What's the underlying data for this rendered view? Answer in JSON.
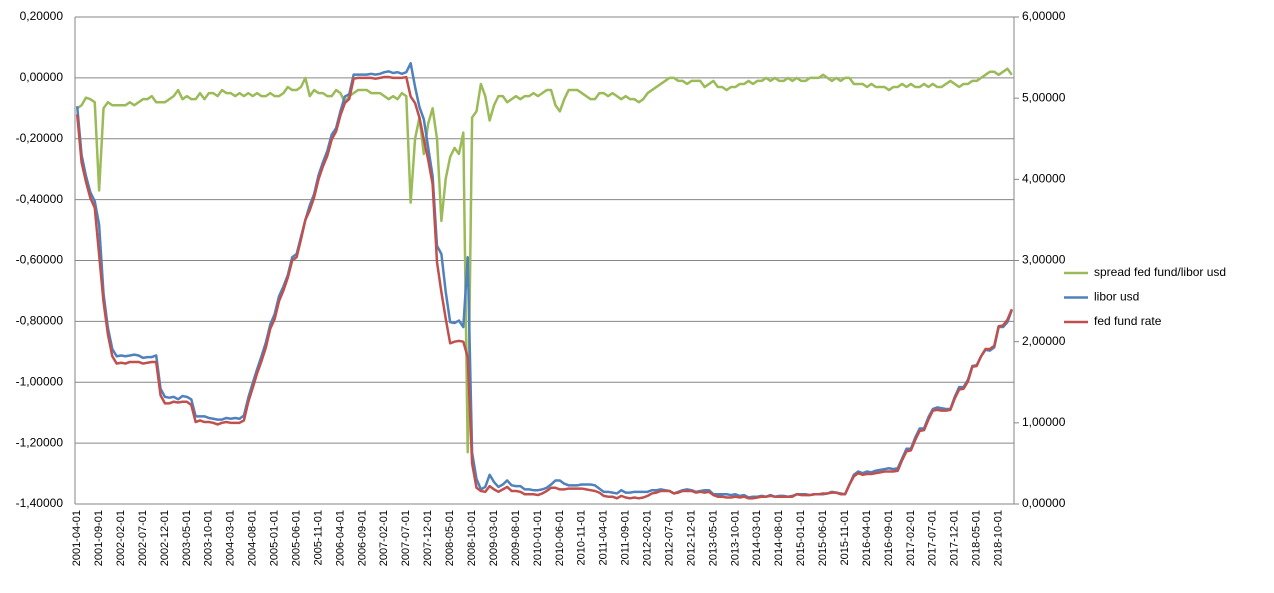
{
  "chart_data": {
    "type": "line",
    "categories": [
      "2001-04-01",
      null,
      null,
      null,
      null,
      "2001-09-01",
      null,
      null,
      null,
      null,
      "2002-02-01",
      null,
      null,
      null,
      null,
      "2002-07-01",
      null,
      null,
      null,
      null,
      "2002-12-01",
      null,
      null,
      null,
      null,
      "2003-05-01",
      null,
      null,
      null,
      null,
      "2003-10-01",
      null,
      null,
      null,
      null,
      "2004-03-01",
      null,
      null,
      null,
      null,
      "2004-08-01",
      null,
      null,
      null,
      null,
      "2005-01-01",
      null,
      null,
      null,
      null,
      "2005-06-01",
      null,
      null,
      null,
      null,
      "2005-11-01",
      null,
      null,
      null,
      null,
      "2006-04-01",
      null,
      null,
      null,
      null,
      "2006-09-01",
      null,
      null,
      null,
      null,
      "2007-02-01",
      null,
      null,
      null,
      null,
      "2007-07-01",
      null,
      null,
      null,
      null,
      "2007-12-01",
      null,
      null,
      null,
      null,
      "2008-05-01",
      null,
      null,
      null,
      null,
      "2008-10-01",
      null,
      null,
      null,
      null,
      "2009-03-01",
      null,
      null,
      null,
      null,
      "2009-08-01",
      null,
      null,
      null,
      null,
      "2010-01-01",
      null,
      null,
      null,
      null,
      "2010-06-01",
      null,
      null,
      null,
      null,
      "2010-11-01",
      null,
      null,
      null,
      null,
      "2011-04-01",
      null,
      null,
      null,
      null,
      "2011-09-01",
      null,
      null,
      null,
      null,
      "2012-02-01",
      null,
      null,
      null,
      null,
      "2012-07-01",
      null,
      null,
      null,
      null,
      "2012-12-01",
      null,
      null,
      null,
      null,
      "2013-05-01",
      null,
      null,
      null,
      null,
      "2013-10-01",
      null,
      null,
      null,
      null,
      "2014-03-01",
      null,
      null,
      null,
      null,
      "2014-08-01",
      null,
      null,
      null,
      null,
      "2015-01-01",
      null,
      null,
      null,
      null,
      "2015-06-01",
      null,
      null,
      null,
      null,
      "2015-11-01",
      null,
      null,
      null,
      null,
      "2016-04-01",
      null,
      null,
      null,
      null,
      "2016-09-01",
      null,
      null,
      null,
      null,
      "2017-02-01",
      null,
      null,
      null,
      null,
      "2017-07-01",
      null,
      null,
      null,
      null,
      "2017-12-01",
      null,
      null,
      null,
      null,
      "2018-05-01",
      null,
      null,
      null,
      null,
      "2018-10-01",
      null,
      null,
      null
    ],
    "series": [
      {
        "name": "spread fed fund/libor usd",
        "color": "#9bbb59",
        "values": [
          -0.1,
          -0.09,
          -0.065,
          -0.07,
          -0.08,
          -0.37,
          -0.1,
          -0.08,
          -0.09,
          -0.09,
          -0.09,
          -0.09,
          -0.08,
          -0.09,
          -0.08,
          -0.07,
          -0.07,
          -0.06,
          -0.08,
          -0.08,
          -0.08,
          -0.07,
          -0.06,
          -0.04,
          -0.07,
          -0.06,
          -0.07,
          -0.07,
          -0.05,
          -0.07,
          -0.05,
          -0.05,
          -0.06,
          -0.04,
          -0.05,
          -0.05,
          -0.06,
          -0.05,
          -0.06,
          -0.05,
          -0.06,
          -0.05,
          -0.06,
          -0.06,
          -0.05,
          -0.06,
          -0.06,
          -0.05,
          -0.03,
          -0.04,
          -0.04,
          -0.03,
          0.0,
          -0.06,
          -0.04,
          -0.05,
          -0.05,
          -0.06,
          -0.06,
          -0.04,
          -0.05,
          -0.08,
          -0.06,
          -0.05,
          -0.04,
          -0.04,
          -0.04,
          -0.05,
          -0.05,
          -0.05,
          -0.06,
          -0.07,
          -0.06,
          -0.07,
          -0.05,
          -0.06,
          -0.41,
          -0.2,
          -0.13,
          -0.25,
          -0.15,
          -0.1,
          -0.2,
          -0.47,
          -0.33,
          -0.26,
          -0.23,
          -0.25,
          -0.18,
          -1.23,
          -0.13,
          -0.11,
          -0.02,
          -0.06,
          -0.14,
          -0.09,
          -0.06,
          -0.06,
          -0.08,
          -0.07,
          -0.06,
          -0.07,
          -0.06,
          -0.06,
          -0.05,
          -0.06,
          -0.05,
          -0.04,
          -0.04,
          -0.09,
          -0.11,
          -0.07,
          -0.04,
          -0.04,
          -0.04,
          -0.05,
          -0.06,
          -0.07,
          -0.07,
          -0.05,
          -0.05,
          -0.06,
          -0.05,
          -0.06,
          -0.07,
          -0.06,
          -0.07,
          -0.07,
          -0.08,
          -0.07,
          -0.05,
          -0.04,
          -0.03,
          -0.02,
          -0.01,
          0.0,
          0.0,
          -0.01,
          -0.01,
          -0.02,
          -0.01,
          -0.01,
          -0.01,
          -0.03,
          -0.02,
          -0.01,
          -0.03,
          -0.03,
          -0.04,
          -0.03,
          -0.03,
          -0.02,
          -0.02,
          -0.01,
          -0.02,
          -0.01,
          -0.01,
          0.0,
          -0.01,
          0.0,
          -0.01,
          -0.01,
          0.0,
          -0.01,
          0.0,
          -0.01,
          -0.01,
          0.0,
          0.0,
          0.0,
          0.01,
          0.0,
          -0.01,
          0.0,
          -0.01,
          0.0,
          0.0,
          -0.02,
          -0.02,
          -0.02,
          -0.03,
          -0.02,
          -0.03,
          -0.03,
          -0.03,
          -0.04,
          -0.03,
          -0.03,
          -0.02,
          -0.03,
          -0.02,
          -0.03,
          -0.03,
          -0.02,
          -0.03,
          -0.02,
          -0.03,
          -0.03,
          -0.02,
          -0.01,
          -0.02,
          -0.03,
          -0.02,
          -0.02,
          -0.01,
          -0.01,
          0.0,
          0.01,
          0.02,
          0.02,
          0.01,
          0.02,
          0.03,
          0.01
        ]
      },
      {
        "name": "libor usd",
        "color": "#4f81bd",
        "axis": "y2",
        "values": [
          4.9,
          4.3,
          4.04,
          3.84,
          3.73,
          3.44,
          2.59,
          2.17,
          1.91,
          1.82,
          1.83,
          1.82,
          1.83,
          1.84,
          1.83,
          1.8,
          1.81,
          1.81,
          1.83,
          1.42,
          1.32,
          1.31,
          1.32,
          1.29,
          1.33,
          1.32,
          1.29,
          1.08,
          1.08,
          1.08,
          1.06,
          1.05,
          1.04,
          1.04,
          1.06,
          1.05,
          1.06,
          1.05,
          1.09,
          1.31,
          1.49,
          1.66,
          1.82,
          1.99,
          2.21,
          2.34,
          2.56,
          2.68,
          2.82,
          3.04,
          3.08,
          3.29,
          3.5,
          3.68,
          3.82,
          4.05,
          4.21,
          4.35,
          4.55,
          4.63,
          4.84,
          5.02,
          5.05,
          5.29,
          5.29,
          5.29,
          5.29,
          5.3,
          5.29,
          5.3,
          5.32,
          5.33,
          5.31,
          5.32,
          5.3,
          5.32,
          5.43,
          5.14,
          4.89,
          4.74,
          4.39,
          4.04,
          3.18,
          3.08,
          2.61,
          2.24,
          2.23,
          2.26,
          2.18,
          3.04,
          0.63,
          0.31,
          0.18,
          0.21,
          0.36,
          0.27,
          0.21,
          0.24,
          0.29,
          0.23,
          0.22,
          0.22,
          0.18,
          0.18,
          0.17,
          0.17,
          0.18,
          0.2,
          0.24,
          0.29,
          0.29,
          0.25,
          0.23,
          0.23,
          0.23,
          0.24,
          0.24,
          0.24,
          0.23,
          0.19,
          0.15,
          0.15,
          0.14,
          0.13,
          0.17,
          0.14,
          0.14,
          0.15,
          0.15,
          0.15,
          0.15,
          0.17,
          0.17,
          0.18,
          0.17,
          0.16,
          0.13,
          0.15,
          0.17,
          0.18,
          0.17,
          0.15,
          0.16,
          0.17,
          0.17,
          0.12,
          0.12,
          0.12,
          0.12,
          0.11,
          0.12,
          0.1,
          0.11,
          0.08,
          0.09,
          0.09,
          0.1,
          0.09,
          0.11,
          0.09,
          0.1,
          0.1,
          0.09,
          0.1,
          0.12,
          0.12,
          0.12,
          0.11,
          0.12,
          0.12,
          0.12,
          0.13,
          0.15,
          0.14,
          0.13,
          0.12,
          0.24,
          0.36,
          0.4,
          0.38,
          0.4,
          0.39,
          0.41,
          0.42,
          0.43,
          0.44,
          0.43,
          0.44,
          0.56,
          0.68,
          0.68,
          0.82,
          0.93,
          0.93,
          1.07,
          1.17,
          1.19,
          1.18,
          1.17,
          1.17,
          1.32,
          1.44,
          1.44,
          1.53,
          1.7,
          1.71,
          1.82,
          1.9,
          1.89,
          1.93,
          2.18,
          2.18,
          2.24,
          2.39
        ]
      },
      {
        "name": "fed fund rate",
        "color": "#c0504d",
        "axis": "y2",
        "values": [
          4.8,
          4.21,
          3.97,
          3.77,
          3.65,
          3.07,
          2.49,
          2.09,
          1.82,
          1.73,
          1.74,
          1.73,
          1.75,
          1.75,
          1.75,
          1.73,
          1.74,
          1.75,
          1.75,
          1.34,
          1.24,
          1.24,
          1.26,
          1.25,
          1.26,
          1.26,
          1.22,
          1.01,
          1.03,
          1.01,
          1.01,
          1.0,
          0.98,
          1.0,
          1.01,
          1.0,
          1.0,
          1.0,
          1.03,
          1.26,
          1.43,
          1.61,
          1.76,
          1.93,
          2.16,
          2.28,
          2.5,
          2.63,
          2.79,
          3.0,
          3.04,
          3.26,
          3.5,
          3.62,
          3.78,
          4.0,
          4.16,
          4.29,
          4.49,
          4.59,
          4.79,
          4.94,
          4.99,
          5.24,
          5.25,
          5.25,
          5.25,
          5.25,
          5.24,
          5.25,
          5.26,
          5.26,
          5.25,
          5.25,
          5.25,
          5.26,
          5.02,
          4.94,
          4.76,
          4.49,
          4.24,
          3.94,
          2.98,
          2.61,
          2.28,
          1.98,
          2.0,
          2.01,
          2.0,
          1.81,
          0.5,
          0.2,
          0.16,
          0.15,
          0.22,
          0.18,
          0.15,
          0.18,
          0.21,
          0.16,
          0.16,
          0.15,
          0.12,
          0.12,
          0.12,
          0.11,
          0.13,
          0.16,
          0.2,
          0.2,
          0.18,
          0.18,
          0.19,
          0.19,
          0.19,
          0.19,
          0.18,
          0.17,
          0.16,
          0.14,
          0.1,
          0.09,
          0.09,
          0.07,
          0.1,
          0.08,
          0.07,
          0.08,
          0.07,
          0.08,
          0.1,
          0.13,
          0.14,
          0.16,
          0.16,
          0.16,
          0.13,
          0.14,
          0.16,
          0.16,
          0.16,
          0.14,
          0.15,
          0.14,
          0.15,
          0.11,
          0.09,
          0.09,
          0.08,
          0.08,
          0.09,
          0.08,
          0.09,
          0.07,
          0.07,
          0.08,
          0.09,
          0.09,
          0.1,
          0.09,
          0.09,
          0.09,
          0.09,
          0.09,
          0.12,
          0.11,
          0.11,
          0.11,
          0.12,
          0.12,
          0.13,
          0.13,
          0.14,
          0.14,
          0.12,
          0.12,
          0.24,
          0.34,
          0.38,
          0.36,
          0.37,
          0.37,
          0.38,
          0.39,
          0.4,
          0.4,
          0.4,
          0.41,
          0.54,
          0.65,
          0.66,
          0.79,
          0.9,
          0.91,
          1.04,
          1.15,
          1.16,
          1.15,
          1.15,
          1.16,
          1.3,
          1.41,
          1.42,
          1.51,
          1.69,
          1.7,
          1.82,
          1.91,
          1.91,
          1.95,
          2.19,
          2.2,
          2.27,
          2.4
        ]
      }
    ],
    "ylim": [
      -1.4,
      0.2
    ],
    "yticks": [
      {
        "value": -1.4,
        "label": "-1,40000"
      },
      {
        "value": -1.2,
        "label": "-1,20000"
      },
      {
        "value": -1.0,
        "label": "-1,00000"
      },
      {
        "value": -0.8,
        "label": "-0,80000"
      },
      {
        "value": -0.6,
        "label": "-0,60000"
      },
      {
        "value": -0.4,
        "label": "-0,40000"
      },
      {
        "value": -0.2,
        "label": "-0,20000"
      },
      {
        "value": 0,
        "label": "0,00000"
      },
      {
        "value": 0.2,
        "label": "0,20000"
      }
    ],
    "y2lim": [
      0,
      6
    ],
    "y2ticks": [
      {
        "value": 0,
        "label": "0,00000"
      },
      {
        "value": 1,
        "label": "1,00000"
      },
      {
        "value": 2,
        "label": "2,00000"
      },
      {
        "value": 3,
        "label": "3,00000"
      },
      {
        "value": 4,
        "label": "4,00000"
      },
      {
        "value": 5,
        "label": "5,00000"
      },
      {
        "value": 6,
        "label": "6,00000"
      }
    ],
    "grid": true,
    "legend": "right"
  }
}
